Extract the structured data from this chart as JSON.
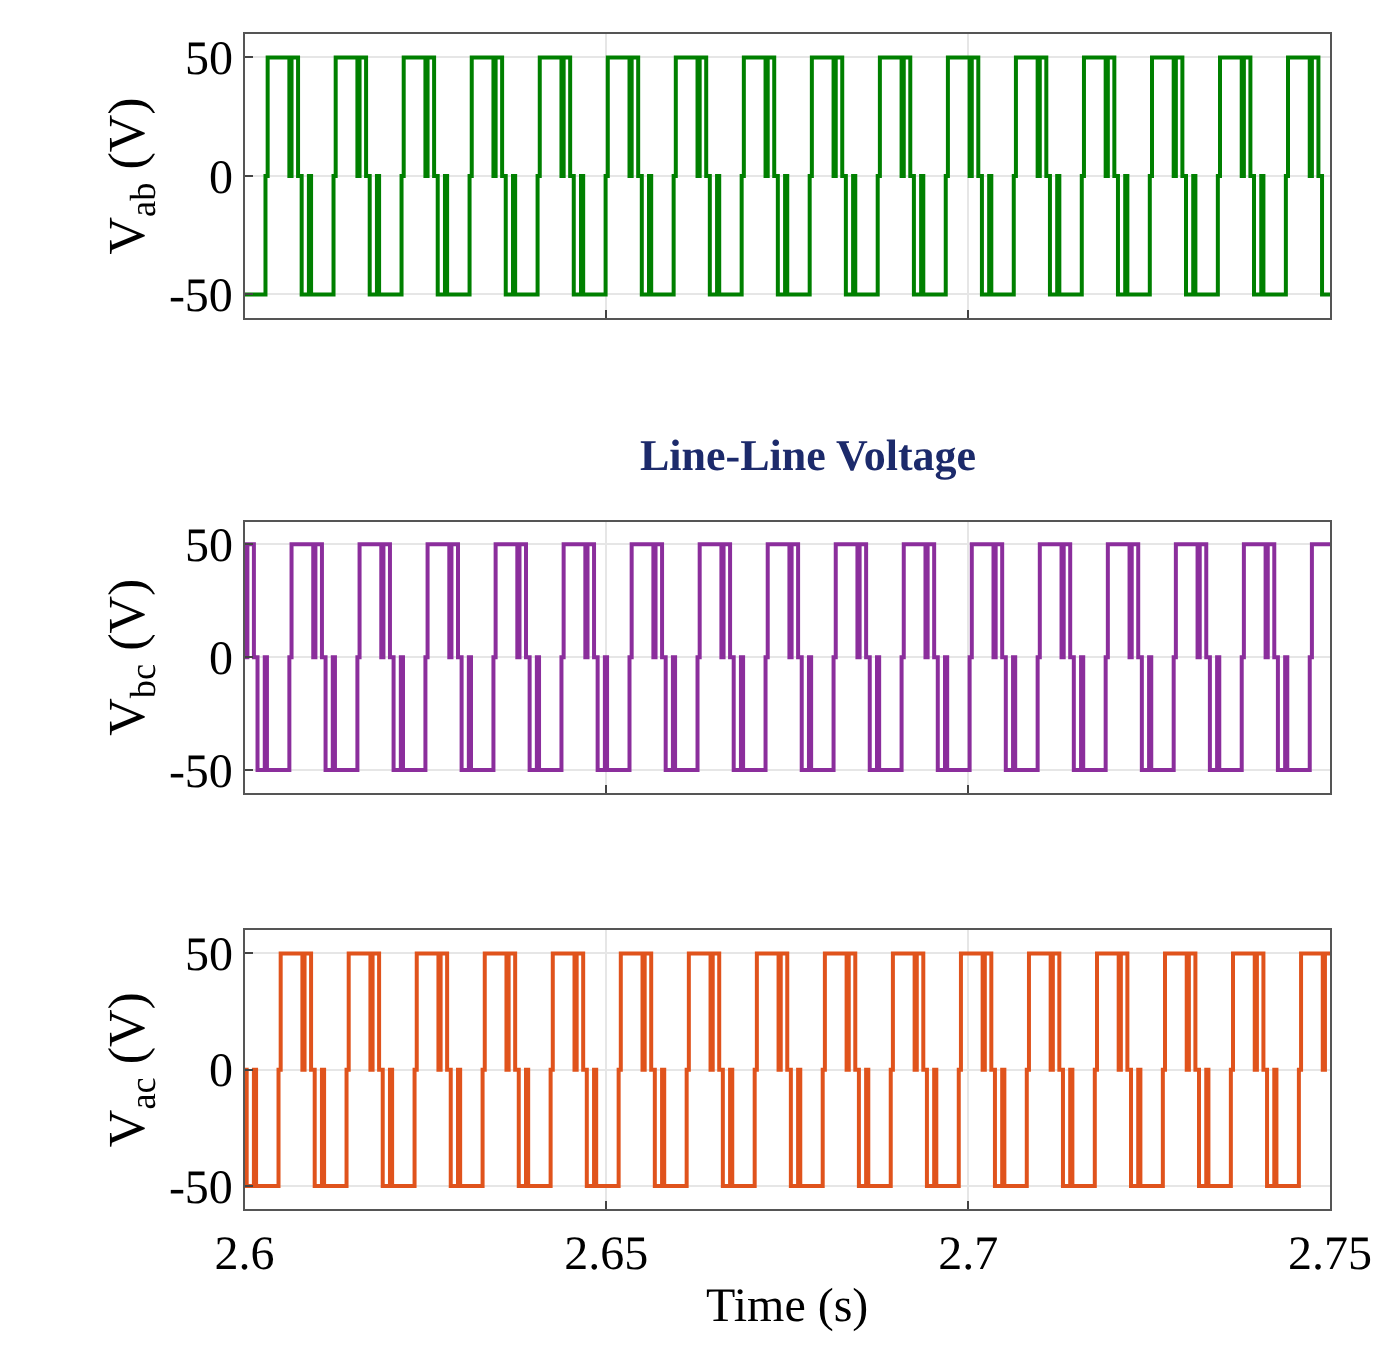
{
  "chart_data": [
    {
      "type": "step",
      "ylabel": "V$_{ab}$ (V)",
      "xlim": [
        2.6,
        2.75
      ],
      "ylim": [
        -60,
        60
      ],
      "yticks": [
        -50,
        0,
        50
      ],
      "xticks": [
        2.6,
        2.65,
        2.7,
        2.75
      ],
      "tick_labels": "y",
      "grid": true,
      "annotations": [
        "Line-Line Voltage"
      ],
      "series": [
        {
          "color": "#008000",
          "x": [
            2.6,
            2.6029,
            2.6032,
            2.6062,
            2.6065,
            2.6074,
            2.6079,
            2.6089,
            2.6092,
            2.6123,
            2.6126,
            2.6156,
            2.6159,
            2.6168,
            2.6173,
            2.6183,
            2.6186,
            2.6217,
            2.622,
            2.625,
            2.6253,
            2.6262,
            2.6267,
            2.6277,
            2.628,
            2.6311,
            2.6314,
            2.6344,
            2.6347,
            2.6356,
            2.6361,
            2.6371,
            2.6374,
            2.6405,
            2.6408,
            2.6438,
            2.6441,
            2.645,
            2.6455,
            2.6465,
            2.6468,
            2.6499,
            2.6502,
            2.6532,
            2.6535,
            2.6544,
            2.6549,
            2.6559,
            2.6562,
            2.6593,
            2.6596,
            2.6626,
            2.6629,
            2.6638,
            2.6643,
            2.6653,
            2.6656,
            2.6687,
            2.669,
            2.672,
            2.6723,
            2.6732,
            2.6737,
            2.6747,
            2.675,
            2.6781,
            2.6784,
            2.6814,
            2.6817,
            2.6826,
            2.6831,
            2.6841,
            2.6844,
            2.6875,
            2.6878,
            2.6908,
            2.6911,
            2.692,
            2.6925,
            2.6935,
            2.6938,
            2.6969,
            2.6972,
            2.7002,
            2.7005,
            2.7014,
            2.7019,
            2.7029,
            2.7032,
            2.7063,
            2.7066,
            2.7096,
            2.7099,
            2.7108,
            2.7113,
            2.7123,
            2.7126,
            2.7157,
            2.716,
            2.719,
            2.7193,
            2.7202,
            2.7207,
            2.7217,
            2.722,
            2.7251,
            2.7254,
            2.7284,
            2.7287,
            2.7296,
            2.7301,
            2.7311,
            2.7314,
            2.7345,
            2.7348,
            2.7378,
            2.7381,
            2.739,
            2.7395,
            2.7405,
            2.7408,
            2.7439,
            2.7442,
            2.7472,
            2.7475,
            2.7484,
            2.7489,
            2.75
          ],
          "values": [
            -50,
            0,
            50,
            0,
            50,
            0,
            -50,
            0,
            -50,
            0,
            50,
            0,
            50,
            0,
            -50,
            0,
            -50,
            0,
            50,
            0,
            50,
            0,
            -50,
            0,
            -50,
            0,
            50,
            0,
            50,
            0,
            -50,
            0,
            -50,
            0,
            50,
            0,
            50,
            0,
            -50,
            0,
            -50,
            0,
            50,
            0,
            50,
            0,
            -50,
            0,
            -50,
            0,
            50,
            0,
            50,
            0,
            -50,
            0,
            -50,
            0,
            50,
            0,
            50,
            0,
            -50,
            0,
            -50,
            0,
            50,
            0,
            50,
            0,
            -50,
            0,
            -50,
            0,
            50,
            0,
            50,
            0,
            -50,
            0,
            -50,
            0,
            50,
            0,
            50,
            0,
            -50,
            0,
            -50,
            0,
            50,
            0,
            50,
            0,
            -50,
            0,
            -50,
            0,
            50,
            0,
            50,
            0,
            -50,
            0,
            -50,
            0,
            50,
            0,
            50,
            0,
            -50,
            0,
            -50,
            0,
            50,
            0,
            50,
            0,
            -50,
            0,
            -50,
            0,
            50,
            0,
            50,
            0,
            -50,
            -50
          ]
        }
      ]
    },
    {
      "type": "step",
      "ylabel": "V$_{bc}$ (V)",
      "xlim": [
        2.6,
        2.75
      ],
      "ylim": [
        -60,
        60
      ],
      "yticks": [
        -50,
        0,
        50
      ],
      "xticks": [
        2.6,
        2.65,
        2.7,
        2.75
      ],
      "tick_labels": "y",
      "grid": true,
      "series": [
        {
          "color": "#8b2e9c",
          "x": [
            2.6,
            2.6001,
            2.6004,
            2.6013,
            2.6018,
            2.6028,
            2.6031,
            2.6062,
            2.6065,
            2.6095,
            2.6098,
            2.6107,
            2.6112,
            2.6122,
            2.6125,
            2.6156,
            2.6159,
            2.6189,
            2.6192,
            2.6201,
            2.6206,
            2.6216,
            2.6219,
            2.625,
            2.6253,
            2.6283,
            2.6286,
            2.6295,
            2.63,
            2.631,
            2.6313,
            2.6344,
            2.6347,
            2.6377,
            2.638,
            2.6389,
            2.6394,
            2.6404,
            2.6407,
            2.6438,
            2.6441,
            2.6471,
            2.6474,
            2.6483,
            2.6488,
            2.6498,
            2.6501,
            2.6532,
            2.6535,
            2.6565,
            2.6568,
            2.6577,
            2.6582,
            2.6592,
            2.6595,
            2.6626,
            2.6629,
            2.6659,
            2.6662,
            2.6671,
            2.6676,
            2.6686,
            2.6689,
            2.672,
            2.6723,
            2.6753,
            2.6756,
            2.6765,
            2.677,
            2.678,
            2.6783,
            2.6814,
            2.6817,
            2.6847,
            2.685,
            2.6859,
            2.6864,
            2.6874,
            2.6877,
            2.6908,
            2.6911,
            2.6941,
            2.6944,
            2.6953,
            2.6958,
            2.6968,
            2.6971,
            2.7002,
            2.7005,
            2.7035,
            2.7038,
            2.7047,
            2.7052,
            2.7062,
            2.7065,
            2.7096,
            2.7099,
            2.7129,
            2.7132,
            2.7141,
            2.7146,
            2.7156,
            2.7159,
            2.719,
            2.7193,
            2.7223,
            2.7226,
            2.7235,
            2.724,
            2.725,
            2.7253,
            2.7284,
            2.7287,
            2.7317,
            2.732,
            2.7329,
            2.7334,
            2.7344,
            2.7347,
            2.7378,
            2.7381,
            2.7411,
            2.7414,
            2.7423,
            2.7428,
            2.7438,
            2.7441,
            2.7472,
            2.7475,
            2.75
          ],
          "values": [
            50,
            0,
            50,
            0,
            -50,
            0,
            -50,
            0,
            50,
            0,
            50,
            0,
            -50,
            0,
            -50,
            0,
            50,
            0,
            50,
            0,
            -50,
            0,
            -50,
            0,
            50,
            0,
            50,
            0,
            -50,
            0,
            -50,
            0,
            50,
            0,
            50,
            0,
            -50,
            0,
            -50,
            0,
            50,
            0,
            50,
            0,
            -50,
            0,
            -50,
            0,
            50,
            0,
            50,
            0,
            -50,
            0,
            -50,
            0,
            50,
            0,
            50,
            0,
            -50,
            0,
            -50,
            0,
            50,
            0,
            50,
            0,
            -50,
            0,
            -50,
            0,
            50,
            0,
            50,
            0,
            -50,
            0,
            -50,
            0,
            50,
            0,
            50,
            0,
            -50,
            0,
            -50,
            0,
            50,
            0,
            50,
            0,
            -50,
            0,
            -50,
            0,
            50,
            0,
            50,
            0,
            -50,
            0,
            -50,
            0,
            50,
            0,
            50,
            0,
            -50,
            0,
            -50,
            0,
            50,
            0,
            50,
            0,
            -50,
            0,
            -50,
            0,
            50,
            0,
            50,
            0,
            -50,
            0,
            -50,
            0,
            50,
            50
          ]
        }
      ]
    },
    {
      "type": "step",
      "ylabel": "V$_{ac}$ (V)",
      "xlabel": "Time (s)",
      "xlim": [
        2.6,
        2.75
      ],
      "ylim": [
        -60,
        60
      ],
      "yticks": [
        -50,
        0,
        50
      ],
      "xticks": [
        2.6,
        2.65,
        2.7,
        2.75
      ],
      "grid": true,
      "series": [
        {
          "color": "#e0531c",
          "x": [
            2.6,
            2.6003,
            2.6013,
            2.6016,
            2.6047,
            2.605,
            2.608,
            2.6083,
            2.6092,
            2.6097,
            2.6107,
            2.611,
            2.6141,
            2.6144,
            2.6174,
            2.6177,
            2.6186,
            2.6191,
            2.6201,
            2.6204,
            2.6235,
            2.6238,
            2.6268,
            2.6271,
            2.628,
            2.6285,
            2.6295,
            2.6298,
            2.6329,
            2.6332,
            2.6362,
            2.6365,
            2.6374,
            2.6379,
            2.6389,
            2.6392,
            2.6423,
            2.6426,
            2.6456,
            2.6459,
            2.6468,
            2.6473,
            2.6483,
            2.6486,
            2.6517,
            2.652,
            2.655,
            2.6553,
            2.6562,
            2.6567,
            2.6577,
            2.658,
            2.6611,
            2.6614,
            2.6644,
            2.6647,
            2.6656,
            2.6661,
            2.6671,
            2.6674,
            2.6705,
            2.6708,
            2.6738,
            2.6741,
            2.675,
            2.6755,
            2.6765,
            2.6768,
            2.6799,
            2.6802,
            2.6832,
            2.6835,
            2.6844,
            2.6849,
            2.6859,
            2.6862,
            2.6893,
            2.6896,
            2.6926,
            2.6929,
            2.6938,
            2.6943,
            2.6953,
            2.6956,
            2.6987,
            2.699,
            2.702,
            2.7023,
            2.7032,
            2.7037,
            2.7047,
            2.705,
            2.7081,
            2.7084,
            2.7114,
            2.7117,
            2.7126,
            2.7131,
            2.7141,
            2.7144,
            2.7175,
            2.7178,
            2.7208,
            2.7211,
            2.722,
            2.7225,
            2.7235,
            2.7238,
            2.7269,
            2.7272,
            2.7302,
            2.7305,
            2.7314,
            2.7319,
            2.7329,
            2.7332,
            2.7363,
            2.7366,
            2.7396,
            2.7399,
            2.7408,
            2.7413,
            2.7423,
            2.7426,
            2.7457,
            2.746,
            2.749,
            2.7493,
            2.75
          ],
          "values": [
            0,
            -50,
            0,
            -50,
            0,
            50,
            0,
            50,
            0,
            -50,
            0,
            -50,
            0,
            50,
            0,
            50,
            0,
            -50,
            0,
            -50,
            0,
            50,
            0,
            50,
            0,
            -50,
            0,
            -50,
            0,
            50,
            0,
            50,
            0,
            -50,
            0,
            -50,
            0,
            50,
            0,
            50,
            0,
            -50,
            0,
            -50,
            0,
            50,
            0,
            50,
            0,
            -50,
            0,
            -50,
            0,
            50,
            0,
            50,
            0,
            -50,
            0,
            -50,
            0,
            50,
            0,
            50,
            0,
            -50,
            0,
            -50,
            0,
            50,
            0,
            50,
            0,
            -50,
            0,
            -50,
            0,
            50,
            0,
            50,
            0,
            -50,
            0,
            -50,
            0,
            50,
            0,
            50,
            0,
            -50,
            0,
            -50,
            0,
            50,
            0,
            50,
            0,
            -50,
            0,
            -50,
            0,
            50,
            0,
            50,
            0,
            -50,
            0,
            -50,
            0,
            50,
            0,
            50,
            0,
            -50,
            0,
            -50,
            0,
            50,
            0,
            50,
            0,
            -50,
            0,
            -50,
            0,
            50,
            0,
            50,
            50
          ]
        }
      ]
    }
  ]
}
